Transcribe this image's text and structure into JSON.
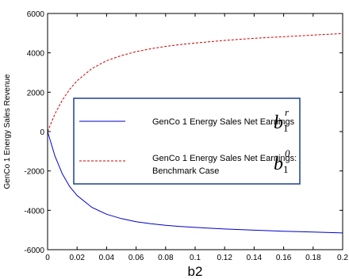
{
  "chart_data": {
    "type": "line",
    "xlabel": "b2",
    "ylabel": "GenCo 1 Energy Sales Revenue",
    "xlim": [
      0,
      0.2
    ],
    "ylim": [
      -6000,
      6000
    ],
    "xticks": [
      "0",
      "0.02",
      "0.04",
      "0.06",
      "0.08",
      "0.1",
      "0.12",
      "0.14",
      "0.16",
      "0.18",
      "0.2"
    ],
    "yticks": [
      "-6000",
      "-4000",
      "-2000",
      "0",
      "2000",
      "4000",
      "6000"
    ],
    "legend_placement": "center",
    "series": [
      {
        "name": "GenCo 1 Energy Sales Net Earnings",
        "symbol": {
          "base": "b",
          "sup": "r",
          "sub": "1"
        },
        "color": "#0000cc",
        "style": "solid",
        "x": [
          0,
          0.005,
          0.01,
          0.015,
          0.02,
          0.03,
          0.04,
          0.05,
          0.06,
          0.07,
          0.08,
          0.09,
          0.1,
          0.12,
          0.14,
          0.16,
          0.18,
          0.2
        ],
        "y": [
          0,
          -1250,
          -2150,
          -2800,
          -3250,
          -3850,
          -4200,
          -4420,
          -4580,
          -4680,
          -4760,
          -4820,
          -4870,
          -4950,
          -5010,
          -5060,
          -5100,
          -5150
        ]
      },
      {
        "name": "GenCo 1 Energy Sales Net Earnings: Benchmark Case",
        "symbol": {
          "base": "b",
          "sup": "0",
          "sub": "1"
        },
        "color": "#cc0000",
        "style": "dashed",
        "x": [
          0,
          0.005,
          0.01,
          0.015,
          0.02,
          0.03,
          0.04,
          0.05,
          0.06,
          0.07,
          0.08,
          0.09,
          0.1,
          0.12,
          0.14,
          0.16,
          0.18,
          0.2
        ],
        "y": [
          0,
          900,
          1600,
          2150,
          2580,
          3200,
          3600,
          3860,
          4060,
          4210,
          4330,
          4420,
          4500,
          4630,
          4740,
          4820,
          4900,
          4980
        ]
      }
    ]
  }
}
